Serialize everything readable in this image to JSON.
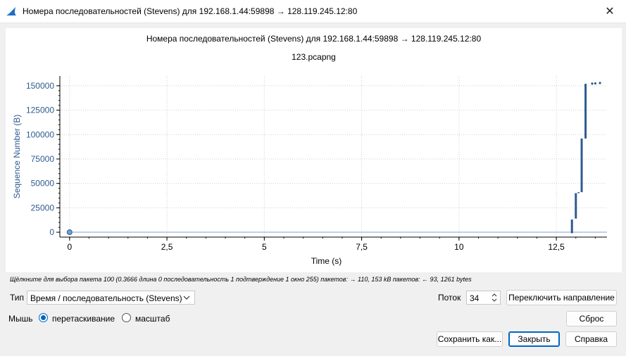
{
  "window": {
    "title": "Номера последовательностей (Stevens) для 192.168.1.44:59898 → 128.119.245.12:80",
    "close_glyph": "✕",
    "icon": "shark-fin-icon"
  },
  "plot": {
    "title": "Номера последовательностей (Stevens) для 192.168.1.44:59898 → 128.119.245.12:80",
    "subtitle": "123.pcapng"
  },
  "chart_data": {
    "type": "scatter",
    "xlabel": "Time (s)",
    "ylabel": "Sequence Number (B)",
    "xlim": [
      -0.25,
      13.8
    ],
    "ylim": [
      -5000,
      160000
    ],
    "x_ticks": [
      0,
      2.5,
      5,
      7.5,
      10,
      12.5
    ],
    "x_tick_labels": [
      "0",
      "2,5",
      "5",
      "7,5",
      "10",
      "12,5"
    ],
    "y_ticks": [
      0,
      25000,
      50000,
      75000,
      100000,
      125000,
      150000
    ],
    "y_tick_labels": [
      "0",
      "25000",
      "50000",
      "75000",
      "100000",
      "125000",
      "150000"
    ],
    "grid": true,
    "series_color": "#2e5a8f",
    "baseline_color": "#7ea6d8",
    "selected_point": {
      "x": 0,
      "y": 0
    },
    "segments": [
      {
        "x": 12.9,
        "y0": -1000,
        "y1": 13000
      },
      {
        "x": 13.0,
        "y0": 14000,
        "y1": 40000
      },
      {
        "x": 13.07,
        "y0": 40000,
        "y1": 41000
      },
      {
        "x": 13.15,
        "y0": 41000,
        "y1": 96000
      },
      {
        "x": 13.25,
        "y0": 96000,
        "y1": 152000
      }
    ],
    "points": [
      {
        "x": 13.42,
        "y": 152200
      },
      {
        "x": 13.5,
        "y": 152400
      },
      {
        "x": 13.62,
        "y": 152800
      }
    ]
  },
  "hint": "Щёлкните для выбора пакета 100 (0.3666 длина 0 последовательность 1 подтверждение 1 окно 255) пакетов: → 110, 153 kB пакетов: ← 93, 1261 bytes",
  "controls": {
    "type_label": "Тип",
    "type_value": "Время / последовательность (Stevens)",
    "stream_label": "Поток",
    "stream_value": "34",
    "switch_direction": "Переключить направление",
    "mouse_label": "Мышь",
    "mouse_drag": "перетаскивание",
    "mouse_zoom": "масштаб",
    "reset": "Сброс",
    "save_as": "Сохранить как...",
    "close": "Закрыть",
    "help": "Справка"
  }
}
